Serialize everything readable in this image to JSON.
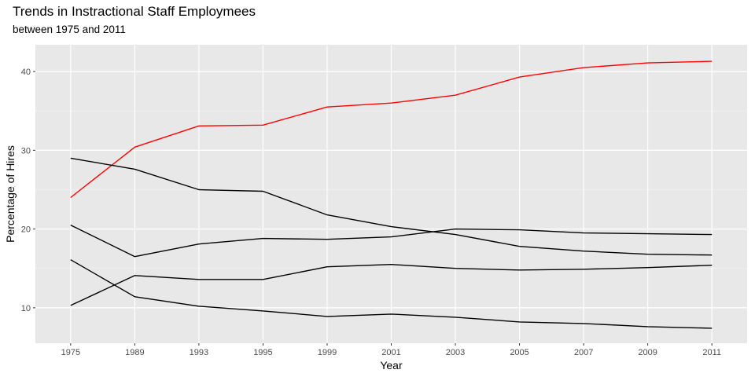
{
  "chart_data": {
    "type": "line",
    "title": "Trends in Instractional Staff Employmees",
    "subtitle": "between 1975 and 2011",
    "xlabel": "Year",
    "ylabel": "Percentage of Hires",
    "x": [
      "1975",
      "1989",
      "1993",
      "1995",
      "1999",
      "2001",
      "2003",
      "2005",
      "2007",
      "2009",
      "2011"
    ],
    "ylim": [
      5.5,
      43.4
    ],
    "yticks": [
      10,
      20,
      30,
      40
    ],
    "grid": true,
    "legend": "none",
    "series": [
      {
        "color": "#ff0000",
        "values": [
          24.0,
          30.4,
          33.1,
          33.2,
          35.5,
          36.0,
          37.0,
          39.3,
          40.5,
          41.1,
          41.3
        ]
      },
      {
        "color": "#000000",
        "values": [
          29.0,
          27.6,
          25.0,
          24.8,
          21.8,
          20.3,
          19.3,
          17.8,
          17.2,
          16.8,
          16.7
        ]
      },
      {
        "color": "#000000",
        "values": [
          20.5,
          16.5,
          18.1,
          18.8,
          18.7,
          19.0,
          20.0,
          19.9,
          19.5,
          19.4,
          19.3
        ]
      },
      {
        "color": "#000000",
        "values": [
          10.3,
          14.1,
          13.6,
          13.6,
          15.2,
          15.5,
          15.0,
          14.8,
          14.9,
          15.1,
          15.4
        ]
      },
      {
        "color": "#000000",
        "values": [
          16.1,
          11.4,
          10.2,
          9.6,
          8.9,
          9.2,
          8.8,
          8.2,
          8.0,
          7.6,
          7.4
        ]
      }
    ]
  }
}
